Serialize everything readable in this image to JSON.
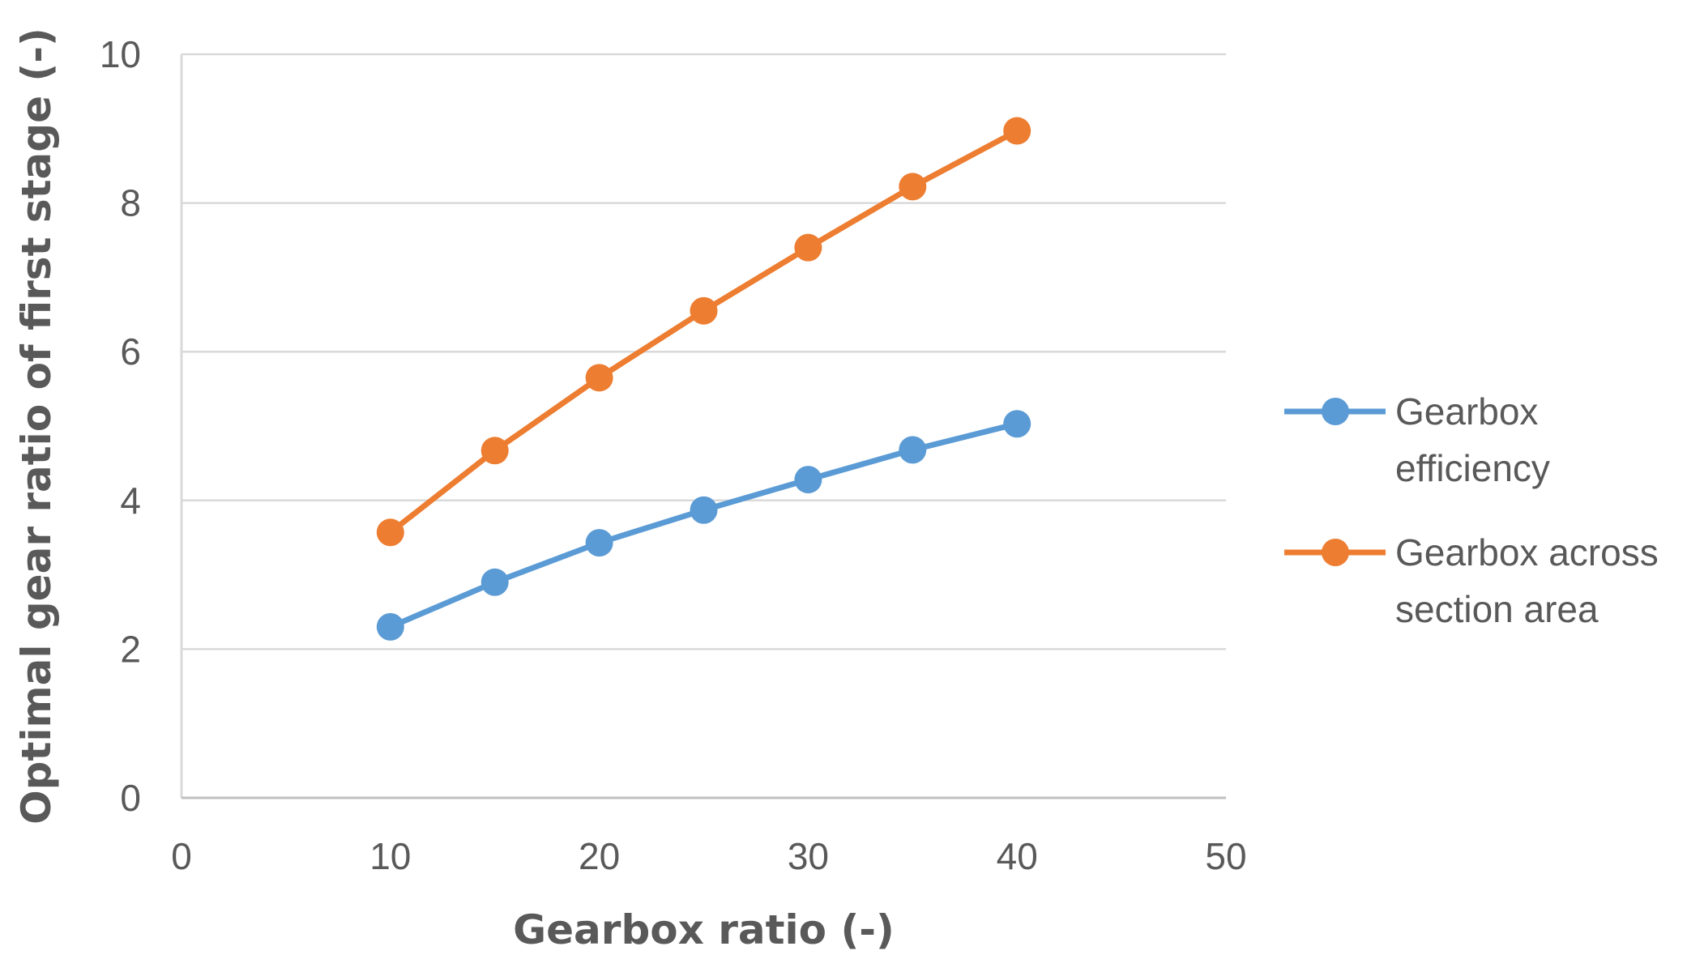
{
  "chart_data": {
    "type": "line",
    "xlabel": "Gearbox ratio (-)",
    "ylabel": "Optimal gear ratio of first stage (-)",
    "xlim": [
      0,
      50
    ],
    "ylim": [
      0,
      10
    ],
    "xticks": [
      "0",
      "10",
      "20",
      "30",
      "40",
      "50"
    ],
    "yticks": [
      "0",
      "2",
      "4",
      "6",
      "8",
      "10"
    ],
    "x": [
      10,
      15,
      20,
      25,
      30,
      35,
      40
    ],
    "grid": "horizontal",
    "legend_position": "right",
    "series": [
      {
        "name_lines": [
          "Gearbox",
          "efficiency"
        ],
        "color": "#5B9BD5",
        "values": [
          2.3,
          2.9,
          3.43,
          3.87,
          4.28,
          4.68,
          5.03
        ]
      },
      {
        "name_lines": [
          "Gearbox across",
          "section area"
        ],
        "color": "#ED7D31",
        "values": [
          3.57,
          4.67,
          5.65,
          6.55,
          7.4,
          8.22,
          8.97
        ]
      }
    ]
  }
}
